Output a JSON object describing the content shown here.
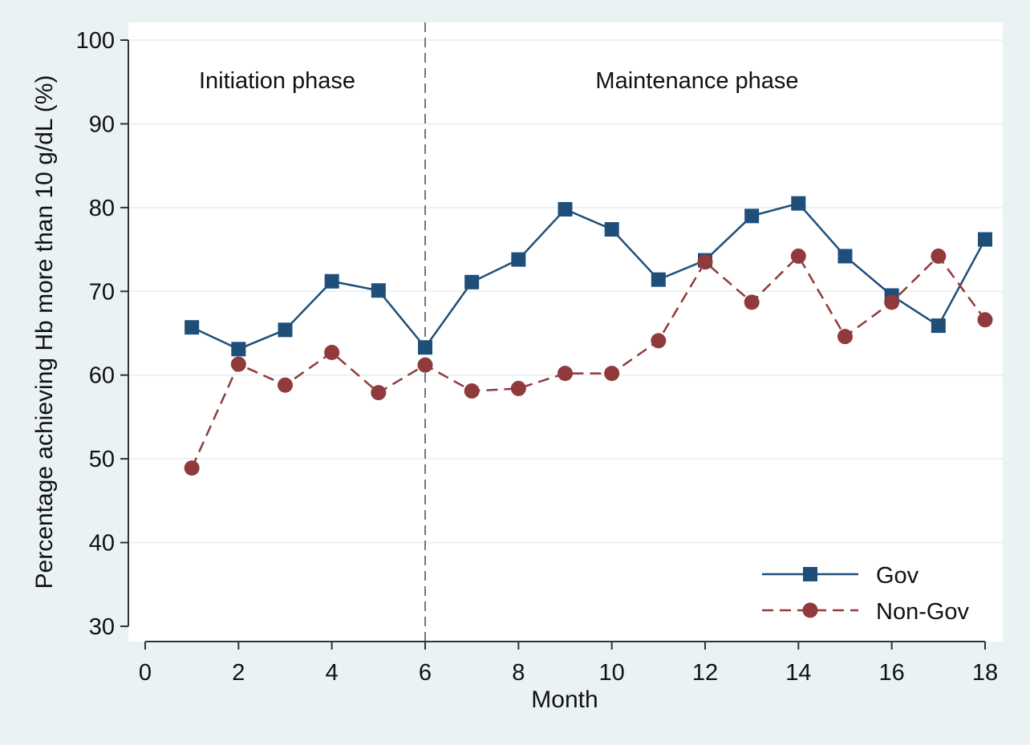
{
  "chart_data": {
    "type": "line",
    "title": "",
    "xlabel": "Month",
    "ylabel": "Percentage achieving Hb more than 10 g/dL (%)",
    "xlim": [
      0,
      18
    ],
    "ylim": [
      30,
      100
    ],
    "x_ticks": [
      0,
      2,
      4,
      6,
      8,
      10,
      12,
      14,
      16,
      18
    ],
    "y_ticks": [
      30,
      40,
      50,
      60,
      70,
      80,
      90,
      100
    ],
    "grid": "horizontal",
    "legend_position": "bottom-right",
    "phase_divider_x": 6,
    "annotations": [
      {
        "text": "Initiation phase",
        "x": 3,
        "y": 96
      },
      {
        "text": "Maintenance phase",
        "x": 12,
        "y": 96
      }
    ],
    "x": [
      1,
      2,
      3,
      4,
      5,
      6,
      7,
      8,
      9,
      10,
      11,
      12,
      13,
      14,
      15,
      16,
      17,
      18
    ],
    "series": [
      {
        "name": "Gov",
        "color": "#1f4e79",
        "marker": "square",
        "line_style": "solid",
        "values": [
          65.7,
          63.1,
          65.4,
          71.2,
          70.1,
          63.3,
          71.1,
          73.8,
          79.8,
          77.4,
          71.4,
          73.7,
          79.0,
          80.5,
          74.2,
          69.5,
          65.9,
          76.2
        ]
      },
      {
        "name": "Non-Gov",
        "color": "#903a3c",
        "marker": "circle",
        "line_style": "dashed",
        "values": [
          48.9,
          61.3,
          58.8,
          62.7,
          57.9,
          61.2,
          58.1,
          58.4,
          60.2,
          60.2,
          64.1,
          73.5,
          68.7,
          74.2,
          64.6,
          68.7,
          74.2,
          66.6
        ]
      }
    ]
  }
}
